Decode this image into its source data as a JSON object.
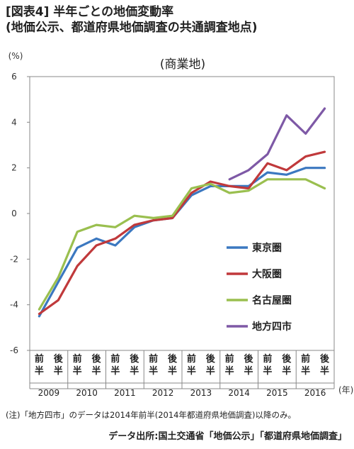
{
  "header": {
    "title": "[図表4] 半年ごとの地価変動率",
    "subtitle": "(地価公示、都道府県地価調査の共通調査地点)"
  },
  "footer": {
    "note": "(注)「地方四市」のデータは2014年前半(2014年都道府県地価調査)以降のみ。",
    "source": "データ出所:国土交通省「地価公示」「都道府県地価調査」"
  },
  "chart_data": {
    "type": "line",
    "title": "(商業地)",
    "ylabel": "(%)",
    "xlabel": "(年)",
    "ylim": [
      -6,
      6
    ],
    "yticks": [
      "6",
      "4",
      "2",
      "0",
      "-2",
      "-4",
      "-6"
    ],
    "grid": false,
    "legend_position": "right-center",
    "half_labels": [
      "前半",
      "後半"
    ],
    "years": [
      "2009",
      "2010",
      "2011",
      "2012",
      "2013",
      "2014",
      "2015",
      "2016"
    ],
    "categories": [
      "2009前半",
      "2009後半",
      "2010前半",
      "2010後半",
      "2011前半",
      "2011後半",
      "2012前半",
      "2012後半",
      "2013前半",
      "2013後半",
      "2014前半",
      "2014後半",
      "2015前半",
      "2015後半",
      "2016前半",
      "2016後半"
    ],
    "series": [
      {
        "name": "東京圏",
        "color": "#3b78c0",
        "values": [
          -4.5,
          -3.0,
          -1.5,
          -1.1,
          -1.4,
          -0.6,
          -0.3,
          -0.2,
          0.8,
          1.2,
          1.2,
          1.2,
          1.8,
          1.7,
          2.0,
          2.0
        ]
      },
      {
        "name": "大阪圏",
        "color": "#c0393b",
        "values": [
          -4.4,
          -3.8,
          -2.3,
          -1.4,
          -1.1,
          -0.5,
          -0.3,
          -0.2,
          0.9,
          1.4,
          1.2,
          1.1,
          2.2,
          1.9,
          2.5,
          2.7
        ]
      },
      {
        "name": "名古屋圏",
        "color": "#9abf4f",
        "values": [
          -4.2,
          -2.8,
          -0.8,
          -0.5,
          -0.6,
          -0.1,
          -0.2,
          -0.1,
          1.1,
          1.3,
          0.9,
          1.0,
          1.5,
          1.5,
          1.5,
          1.1
        ]
      },
      {
        "name": "地方四市",
        "color": "#7e59a6",
        "values": [
          null,
          null,
          null,
          null,
          null,
          null,
          null,
          null,
          null,
          null,
          1.5,
          1.9,
          2.6,
          4.3,
          3.5,
          4.6
        ]
      }
    ]
  }
}
